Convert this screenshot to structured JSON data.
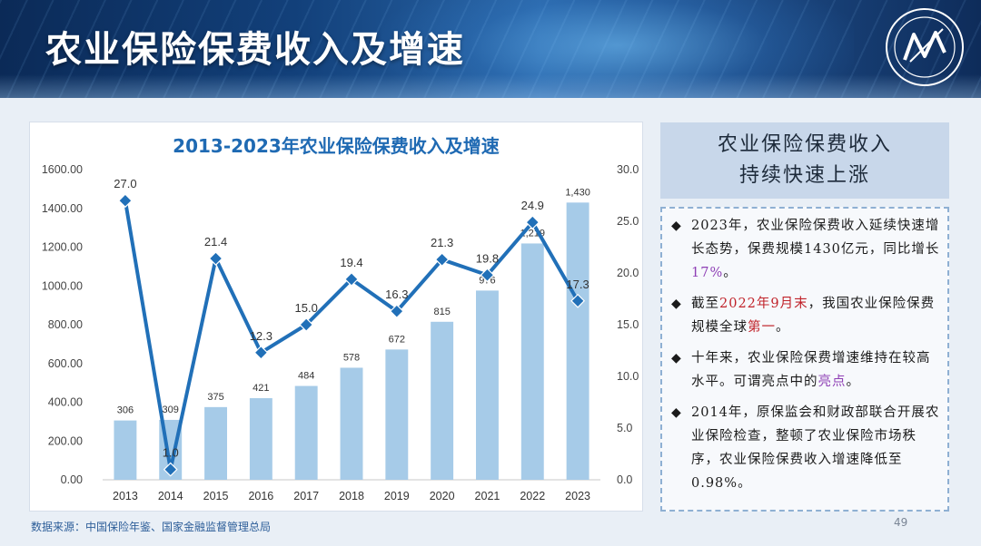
{
  "header": {
    "title": "农业保险保费收入及增速"
  },
  "chart_data": {
    "type": "bar",
    "title": "2013-2023年农业保险保费收入及增速",
    "categories": [
      "2013",
      "2014",
      "2015",
      "2016",
      "2017",
      "2018",
      "2019",
      "2020",
      "2021",
      "2022",
      "2023"
    ],
    "series": [
      {
        "type": "bar",
        "axis": "left",
        "values": [
          306,
          309,
          375,
          421,
          484,
          578,
          672,
          815,
          976,
          1219,
          1430
        ],
        "labels": [
          "306",
          "309",
          "375",
          "421",
          "484",
          "578",
          "672",
          "815",
          "976",
          "1,219",
          "1,430"
        ],
        "color": "#a6cbe8"
      },
      {
        "type": "line",
        "axis": "right",
        "values": [
          27.0,
          1.0,
          21.4,
          12.3,
          15.0,
          19.4,
          16.3,
          21.3,
          19.8,
          24.9,
          17.3
        ],
        "labels": [
          "27.0",
          "1.0",
          "21.4",
          "12.3",
          "15.0",
          "19.4",
          "16.3",
          "21.3",
          "19.8",
          "24.9",
          "17.3"
        ],
        "color": "#2170b8"
      }
    ],
    "y_left": {
      "ylim": [
        0,
        1600
      ],
      "ticks": [
        "0.00",
        "200.00",
        "400.00",
        "600.00",
        "800.00",
        "1000.00",
        "1200.00",
        "1400.00",
        "1600.00"
      ]
    },
    "y_right": {
      "ylim": [
        0,
        30
      ],
      "ticks": [
        "0.0",
        "5.0",
        "10.0",
        "15.0",
        "20.0",
        "25.0",
        "30.0"
      ]
    },
    "grid": false,
    "legend": "none"
  },
  "side": {
    "title_line1": "农业保险保费收入",
    "title_line2": "持续快速上涨",
    "bullet_mark": "◆",
    "b1_a": "2023年，农业保险保费收入延续快速增长态势，保费规模1430亿元，同比增长",
    "b1_b": "17%",
    "b1_c": "。",
    "b2_a": "截至",
    "b2_b": "2022年9月末",
    "b2_c": "，我国农业保险保费规模全球",
    "b2_d": "第一",
    "b2_e": "。",
    "b3_a": "十年来，农业保险保费增速维持在较高水平。可谓亮点中的",
    "b3_b": "亮点",
    "b3_c": "。",
    "b4": "2014年，原保监会和财政部联合开展农业保险检查，整顿了农业保险市场秩序，农业保险保费收入增速降低至0.98%。"
  },
  "footer": {
    "source": "数据来源：中国保险年鉴、国家金融监督管理总局",
    "page": "49"
  }
}
